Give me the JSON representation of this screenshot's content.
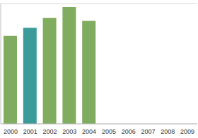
{
  "chart_data": {
    "type": "bar",
    "categories": [
      "2000",
      "2001",
      "2002",
      "2003",
      "2004",
      "2005",
      "2006",
      "2007",
      "2008",
      "2009"
    ],
    "values": [
      3.8,
      4.15,
      4.58,
      5.05,
      4.45,
      null,
      null,
      null,
      null,
      null
    ],
    "colors": [
      "#7fac5e",
      "#3a9b9a",
      "#7fac5e",
      "#7fac5e",
      "#7fac5e",
      "#7fac5e",
      "#7fac5e",
      "#7fac5e",
      "#7fac5e",
      "#7fac5e"
    ],
    "ylim": [
      0,
      5.2
    ],
    "yticks": [
      0,
      1,
      2,
      3,
      4,
      5
    ],
    "grid": true,
    "tick_labels": "x"
  }
}
